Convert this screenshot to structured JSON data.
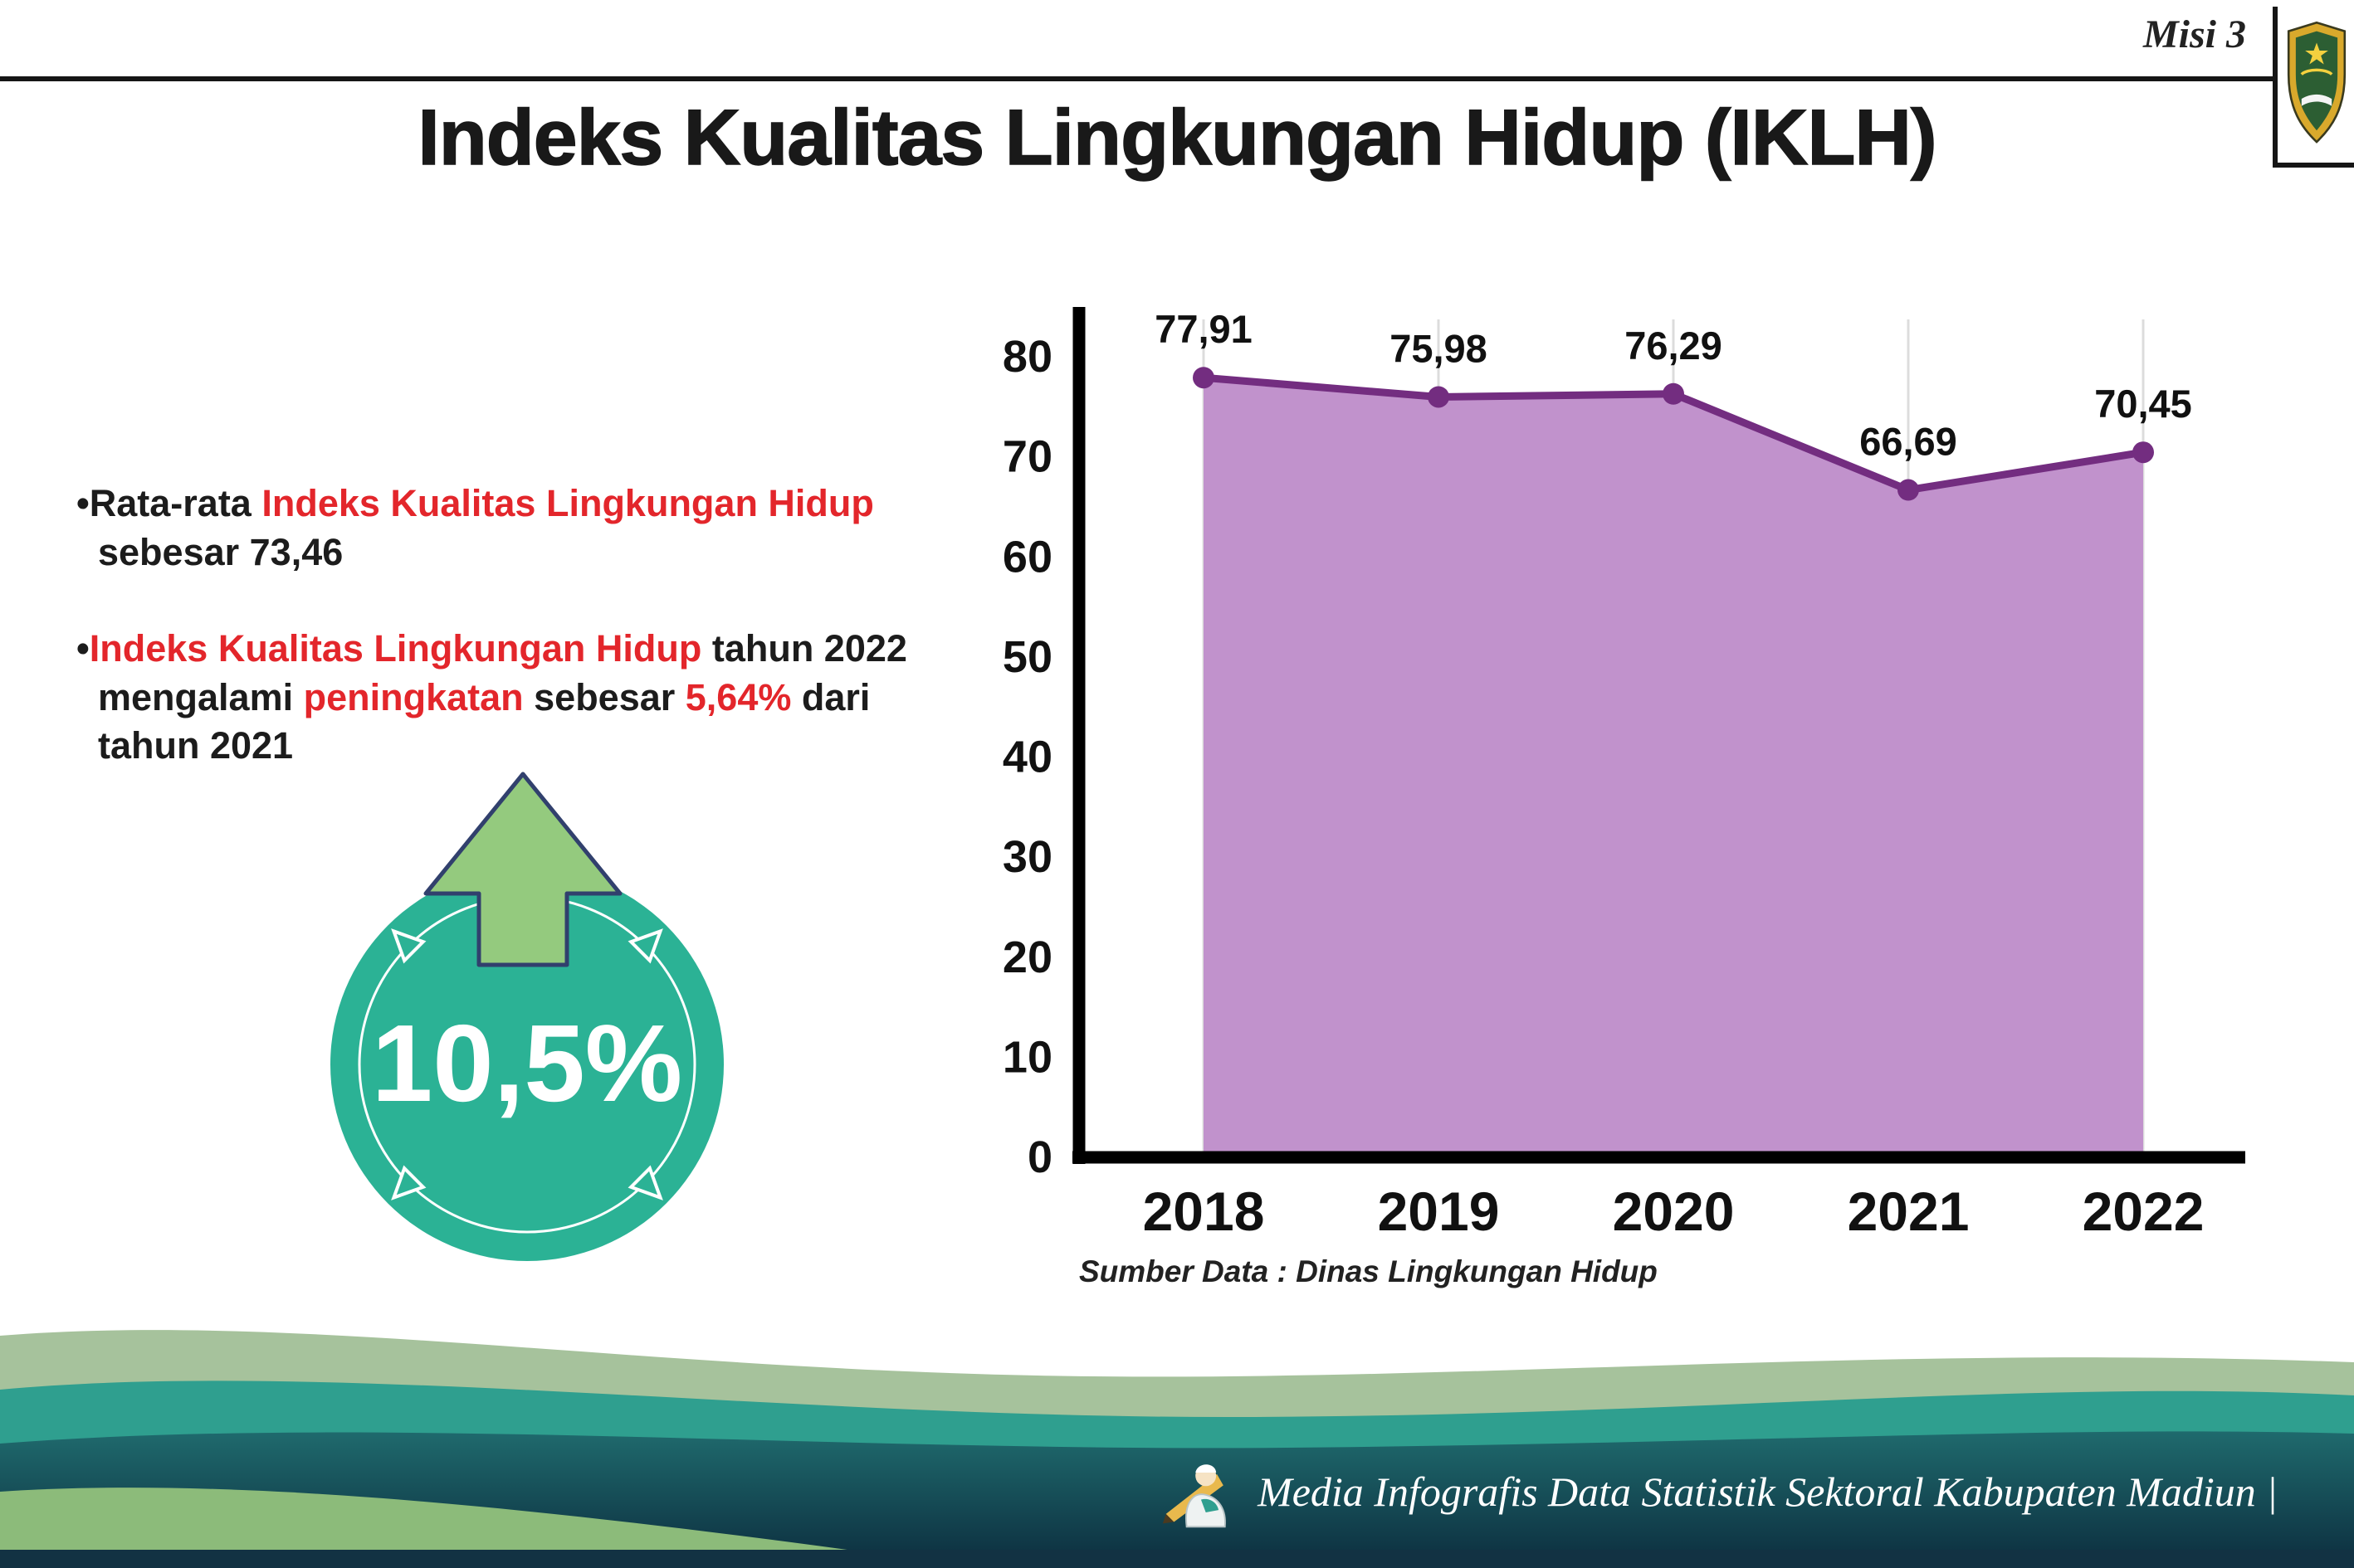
{
  "header": {
    "misi_label": "Misi 3"
  },
  "title": "Indeks Kualitas Lingkungan Hidup (IKLH)",
  "bullets": [
    {
      "marker": "•",
      "segments": [
        {
          "text": "Rata-rata ",
          "red": false
        },
        {
          "text": "Indeks Kualitas Lingkungan Hidup",
          "red": true
        },
        {
          "text": " sebesar 73,46",
          "red": false
        }
      ]
    },
    {
      "marker": "•",
      "segments": [
        {
          "text": "Indeks Kualitas Lingkungan Hidup",
          "red": true
        },
        {
          "text": " tahun 2022 mengalami ",
          "red": false
        },
        {
          "text": "peningkatan",
          "red": true
        },
        {
          "text": " sebesar ",
          "red": false
        },
        {
          "text": "5,64%",
          "red": true
        },
        {
          "text": " dari tahun 2021",
          "red": false
        }
      ]
    }
  ],
  "badge": {
    "value": "10,5%"
  },
  "chart_data": {
    "type": "area",
    "title": "Indeks Kualitas Lingkungan Hidup (IKLH)",
    "categories": [
      "2018",
      "2019",
      "2020",
      "2021",
      "2022"
    ],
    "values": [
      77.91,
      75.98,
      76.29,
      66.69,
      70.45
    ],
    "point_labels": [
      "77,91",
      "75,98",
      "76,29",
      "66,69",
      "70,45"
    ],
    "ylim": [
      0,
      80
    ],
    "yticks": [
      "0",
      "10",
      "20",
      "30",
      "40",
      "50",
      "60",
      "70",
      "80"
    ],
    "grid": "faint vertical per category",
    "legend": "none",
    "area_color": "#c192cc",
    "line_color": "#732d80",
    "source_note": "Sumber Data : Dinas Lingkungan Hidup"
  },
  "footer": {
    "credit": "Media Infografis Data Statistik Sektoral Kabupaten Madiun |"
  },
  "colors": {
    "red_text": "#e3262b",
    "badge_teal": "#2bb295",
    "arrow_green": "#94ca7e",
    "arrow_outline": "#31406d",
    "wave_sage": "#a6c29c",
    "wave_teal": "#2f9f8f",
    "wave_dark_top": "#1f6a6d",
    "wave_dark_bottom": "#0c2d3e",
    "wave_green_swoosh": "#8cbb7a",
    "wave_bottom_strip": "#123243"
  }
}
